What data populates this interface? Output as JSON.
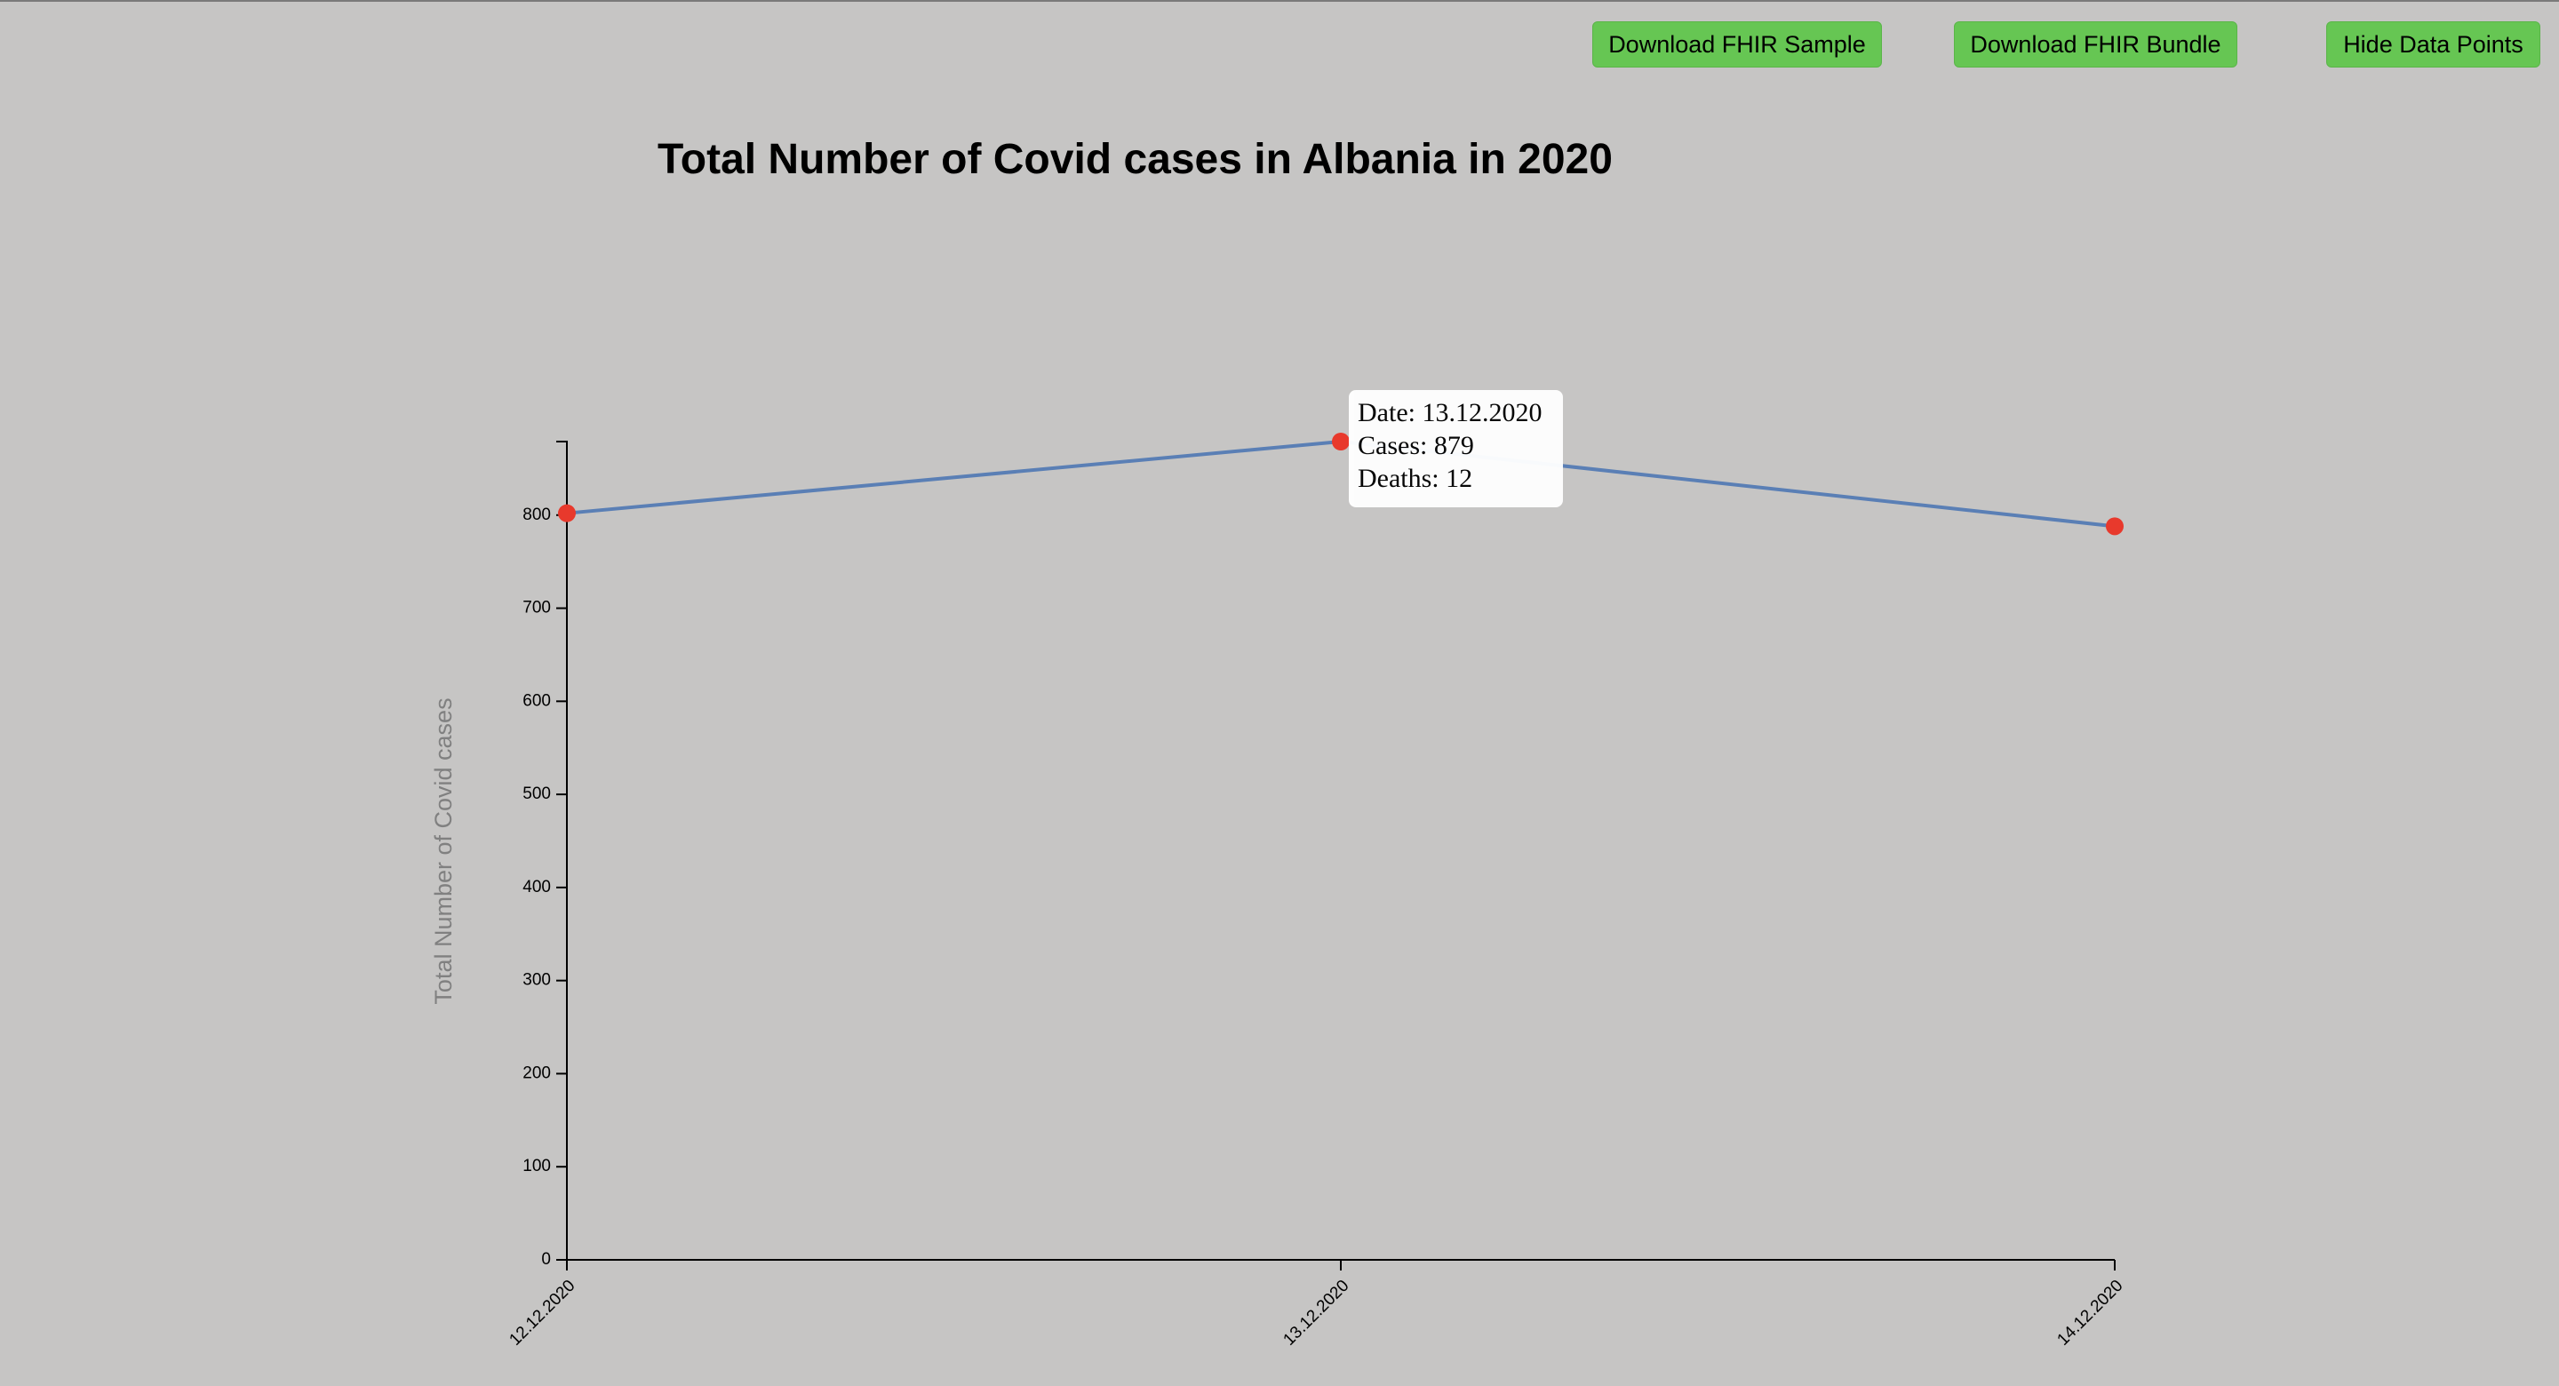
{
  "buttons": {
    "download_sample": "Download FHIR Sample",
    "download_bundle": "Download FHIR Bundle",
    "hide_points": "Hide Data Points"
  },
  "colors": {
    "background": "#c6c5c4",
    "button": "#66c653",
    "line": "#5a7fb5",
    "point": "#e8392c"
  },
  "tooltip": {
    "date": "Date: 13.12.2020",
    "cases": "Cases: 879",
    "deaths": "Deaths: 12"
  },
  "chart_data": {
    "type": "line",
    "title": "Total Number of Covid cases in Albania in 2020",
    "xlabel": "",
    "ylabel": "Total Number of Covid cases",
    "x": [
      "12.12.2020",
      "13.12.2020",
      "14.12.2020"
    ],
    "series": [
      {
        "values": [
          802,
          879,
          788
        ]
      }
    ],
    "ylim": [
      0,
      879
    ],
    "yticks": [
      0,
      100,
      200,
      300,
      400,
      500,
      600,
      700,
      800
    ],
    "grid": false,
    "markers": true
  }
}
